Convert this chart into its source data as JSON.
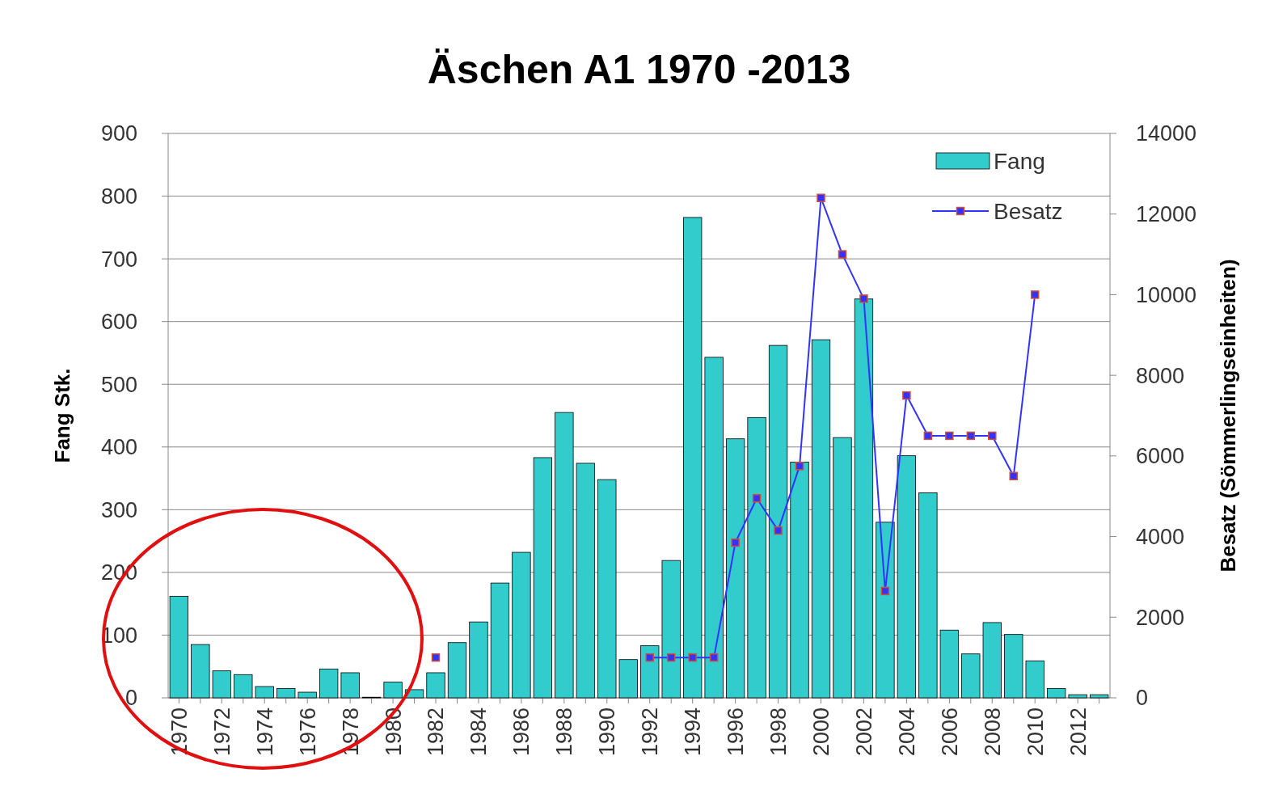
{
  "chart_data": {
    "type": "bar",
    "title": "Äschen A1 1970 -2013",
    "ylabel": "Fang Stk.",
    "y2label": "Besatz (Sömmerlingseinheiten)",
    "categories": [
      "1970",
      null,
      "1972",
      null,
      "1974",
      null,
      "1976",
      null,
      "1978",
      null,
      "1980",
      null,
      "1982",
      null,
      "1984",
      null,
      "1986",
      null,
      "1988",
      null,
      "1990",
      null,
      "1992",
      null,
      "1994",
      null,
      "1996",
      null,
      "1998",
      null,
      "2000",
      null,
      "2002",
      null,
      "2004",
      null,
      "2006",
      null,
      "2008",
      null,
      "2010",
      null,
      "2012",
      null
    ],
    "series": [
      {
        "name": "Fang",
        "color": "#33cccc",
        "values": [
          162,
          85,
          43,
          37,
          18,
          15,
          9,
          46,
          40,
          1,
          25,
          13,
          40,
          88,
          121,
          183,
          232,
          383,
          455,
          374,
          348,
          61,
          83,
          219,
          766,
          543,
          413,
          447,
          562,
          376,
          571,
          415,
          636,
          280,
          386,
          327,
          108,
          70,
          120,
          101,
          59,
          15,
          5,
          5
        ]
      },
      {
        "name": "Besatz",
        "type": "line",
        "axis": "y2",
        "color": "#3333ff",
        "values": [
          null,
          null,
          null,
          null,
          null,
          null,
          null,
          null,
          null,
          null,
          null,
          null,
          1000,
          null,
          null,
          null,
          null,
          null,
          null,
          null,
          null,
          null,
          1000,
          1000,
          1000,
          1000,
          3850,
          4950,
          4150,
          5750,
          12400,
          11000,
          9900,
          2650,
          7500,
          6500,
          6500,
          6500,
          6500,
          5500,
          10000,
          null,
          null,
          null
        ]
      }
    ],
    "ylim": [
      0,
      900
    ],
    "yticks": [
      0,
      100,
      200,
      300,
      400,
      500,
      600,
      700,
      800,
      900
    ],
    "y2lim": [
      0,
      14000
    ],
    "y2ticks": [
      0,
      2000,
      4000,
      6000,
      8000,
      10000,
      12000,
      14000
    ],
    "grid": "y",
    "legend": "top right",
    "marker": "square"
  }
}
